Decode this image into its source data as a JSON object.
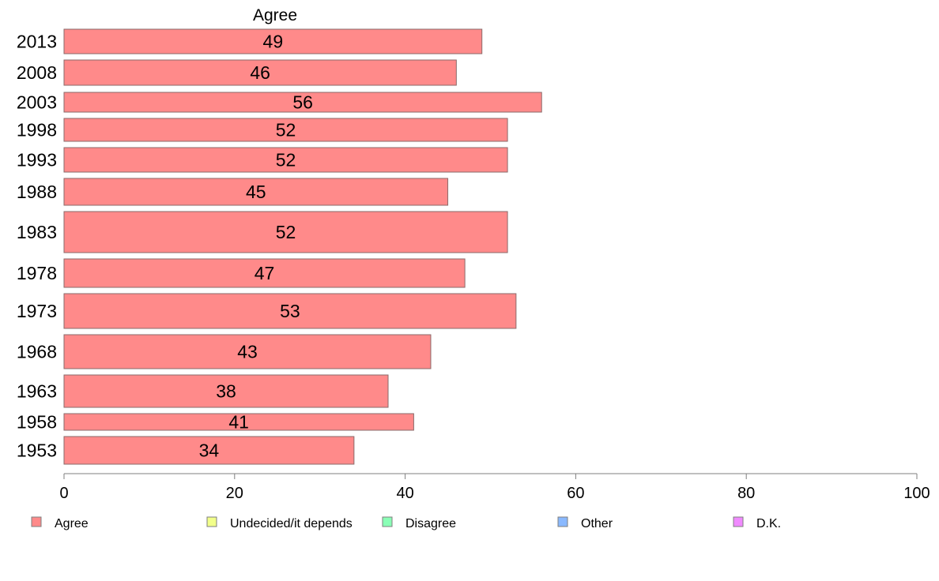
{
  "colors": {
    "axis": "#7f7f7f",
    "bar_stroke": "#8a6a6a"
  },
  "chart_data": {
    "type": "bar",
    "orientation": "horizontal",
    "stacked": true,
    "series_title": "Agree",
    "categories": [
      "2013",
      "2008",
      "2003",
      "1998",
      "1993",
      "1988",
      "1983",
      "1978",
      "1973",
      "1968",
      "1963",
      "1958",
      "1953"
    ],
    "series": [
      {
        "name": "Agree",
        "color": "#ff8a8a",
        "values": [
          49,
          46,
          56,
          52,
          52,
          45,
          52,
          47,
          53,
          43,
          38,
          41,
          34
        ]
      }
    ],
    "xlim": [
      0,
      100
    ],
    "xticks": [
      0,
      20,
      40,
      60,
      80,
      100
    ],
    "grid": false,
    "legend": {
      "placement": "bottom",
      "items": [
        {
          "label": "Agree",
          "color": "#ff8a8a"
        },
        {
          "label": "Undecided/it depends",
          "color": "#f2ff8a"
        },
        {
          "label": "Disagree",
          "color": "#8affb6"
        },
        {
          "label": "Other",
          "color": "#8ab9ff"
        },
        {
          "label": "D.K.",
          "color": "#f08aff"
        }
      ]
    }
  }
}
